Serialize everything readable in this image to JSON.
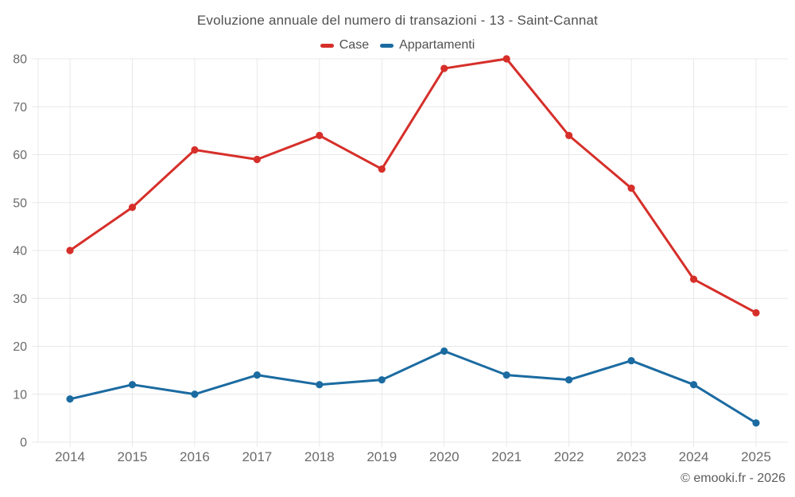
{
  "header": {
    "title": "Evoluzione annuale del numero di transazioni - 13 - Saint-Cannat"
  },
  "footer": {
    "credit": "© emooki.fr - 2026"
  },
  "colors": {
    "case": "#d62f2a",
    "appartamenti": "#1b6ba1",
    "grid": "#e8e8e8",
    "axis_text": "#6b6b6b",
    "title_text": "#515151",
    "footer_text": "#5c5c5c",
    "background": "#ffffff"
  },
  "chart_data": {
    "type": "line",
    "title": "Evoluzione annuale del numero di transazioni - 13 - Saint-Cannat",
    "categories": [
      "2014",
      "2015",
      "2016",
      "2017",
      "2018",
      "2019",
      "2020",
      "2021",
      "2022",
      "2023",
      "2024",
      "2025"
    ],
    "series": [
      {
        "name": "Case",
        "color": "#d62f2a",
        "values": [
          40,
          49,
          61,
          59,
          64,
          57,
          78,
          80,
          64,
          53,
          34,
          27
        ]
      },
      {
        "name": "Appartamenti",
        "color": "#1b6ba1",
        "values": [
          9,
          12,
          10,
          14,
          12,
          13,
          19,
          14,
          13,
          17,
          12,
          4
        ]
      }
    ],
    "xlabel": "",
    "ylabel": "",
    "ylim": [
      0,
      80
    ],
    "ytick_step": 10,
    "yticks": [
      0,
      10,
      20,
      30,
      40,
      50,
      60,
      70,
      80
    ],
    "grid": true,
    "legend_position": "top",
    "markers": true
  }
}
